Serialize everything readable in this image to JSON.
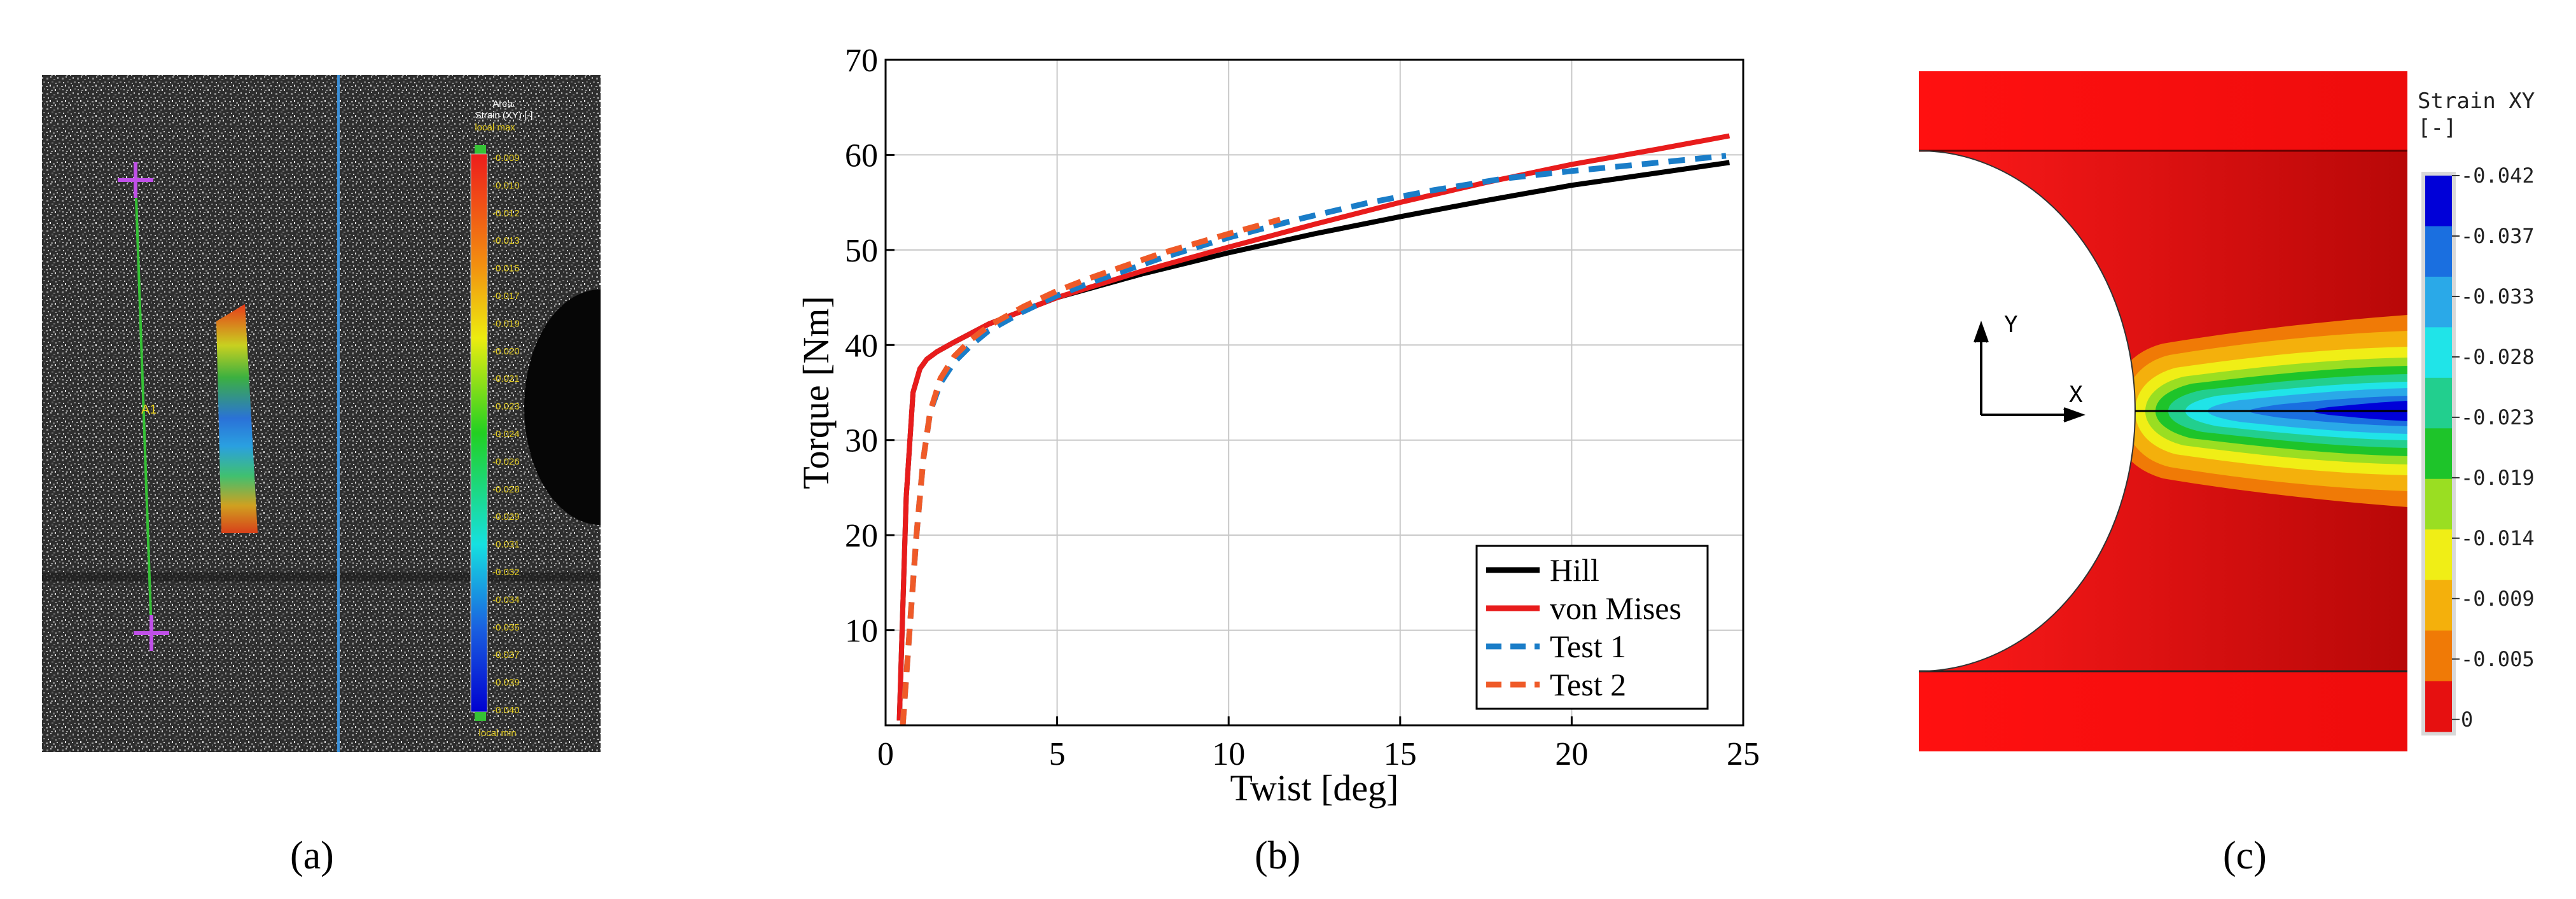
{
  "panels": {
    "a": {
      "label": "(a)",
      "scale_title": "Area:",
      "scale_subtitle": "Strain (XY) [-]",
      "scale_max_label": "local max",
      "scale_min_label": "local min",
      "scale_ticks": [
        "-0.009",
        "-0.010",
        "-0.012",
        "-0.013",
        "-0.015",
        "-0.017",
        "-0.019",
        "-0.020",
        "-0.021",
        "-0.023",
        "-0.024",
        "-0.026",
        "-0.028",
        "-0.029",
        "-0.031",
        "-0.032",
        "-0.034",
        "-0.035",
        "-0.037",
        "-0.039",
        "-0.040"
      ],
      "line_label": "A1"
    },
    "b": {
      "label": "(b)"
    },
    "c": {
      "label": "(c)",
      "legend_title": "Strain XY",
      "legend_unit": "[-]",
      "legend_ticks": [
        "-0.042",
        "-0.037",
        "-0.033",
        "-0.028",
        "-0.023",
        "-0.019",
        "-0.014",
        "-0.009",
        "-0.005",
        "0"
      ],
      "legend_colors": [
        "#0000d8",
        "#1a6fe0",
        "#2aa9e8",
        "#20e4e8",
        "#22cf8e",
        "#1ec42a",
        "#9ade22",
        "#f0ee16",
        "#f4b00c",
        "#f07a06",
        "#e61010"
      ],
      "axis_x": "X",
      "axis_y": "Y"
    }
  },
  "chart_data": {
    "type": "line",
    "xlabel": "Twist [deg]",
    "ylabel": "Torque [Nm]",
    "xlim": [
      0,
      25
    ],
    "ylim": [
      0,
      70
    ],
    "xticks": [
      0,
      5,
      10,
      15,
      20,
      25
    ],
    "yticks": [
      10,
      20,
      30,
      40,
      50,
      60,
      70
    ],
    "grid": true,
    "legend_position": "bottom-right",
    "series": [
      {
        "name": "Hill",
        "color": "#000000",
        "style": "solid",
        "x": [
          0.4,
          0.6,
          0.8,
          1.0,
          1.2,
          1.5,
          2.0,
          3.0,
          5.0,
          7.5,
          10.0,
          12.5,
          15.0,
          17.5,
          20.0,
          22.5,
          24.6
        ],
        "y": [
          0.5,
          24,
          35,
          37.5,
          38.5,
          39.3,
          40.3,
          42.2,
          45.0,
          47.5,
          49.7,
          51.7,
          53.5,
          55.2,
          56.8,
          58.1,
          59.2
        ]
      },
      {
        "name": "von Mises",
        "color": "#e81c1c",
        "style": "solid",
        "x": [
          0.4,
          0.6,
          0.8,
          1.0,
          1.2,
          1.5,
          2.0,
          3.0,
          5.0,
          7.5,
          10.0,
          12.5,
          15.0,
          17.5,
          20.0,
          22.5,
          24.6
        ],
        "y": [
          0.5,
          24,
          35,
          37.5,
          38.5,
          39.3,
          40.3,
          42.2,
          45.0,
          47.8,
          50.3,
          52.7,
          55.0,
          57.1,
          59.0,
          60.6,
          62.0
        ]
      },
      {
        "name": "Test 1",
        "color": "#1a7dc8",
        "style": "dashed",
        "x": [
          0.5,
          0.7,
          0.9,
          1.1,
          1.3,
          1.6,
          2.0,
          2.5,
          3.0,
          4.0,
          5.0,
          6.0,
          8.0,
          10.0,
          12.0,
          14.0,
          16.0,
          18.0,
          20.0,
          22.0,
          24.5
        ],
        "y": [
          0.0,
          10.0,
          20.0,
          28.0,
          33.0,
          36.0,
          38.2,
          40.0,
          41.5,
          43.5,
          45.2,
          46.6,
          49.1,
          51.3,
          53.2,
          54.9,
          56.3,
          57.5,
          58.3,
          59.0,
          59.9
        ]
      },
      {
        "name": "Test 2",
        "color": "#ef5a28",
        "style": "dashed",
        "x": [
          0.5,
          0.7,
          0.9,
          1.1,
          1.3,
          1.6,
          2.0,
          2.5,
          3.0,
          4.0,
          5.0,
          6.0,
          8.0,
          10.0,
          11.5
        ],
        "y": [
          0.0,
          10.0,
          20.0,
          28.0,
          33.0,
          36.5,
          38.8,
          40.6,
          42.0,
          44.0,
          45.7,
          47.1,
          49.6,
          51.7,
          53.2
        ]
      }
    ]
  }
}
